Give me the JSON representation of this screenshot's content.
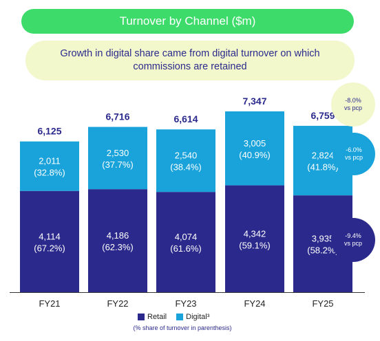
{
  "title": "Turnover by Channel ($m)",
  "subtitle": "Growth in digital share came from digital turnover on which commissions are retained",
  "colors": {
    "retail": "#2b2a8c",
    "digital": "#1aa3db",
    "title_bg": "#3ddc6a",
    "subtitle_bg": "#f2f7cc",
    "bubble_light": "#f2f7cc"
  },
  "bubbles": [
    {
      "line1": "-8.0%",
      "line2": "vs pcp",
      "style": "light"
    },
    {
      "line1": "-6.0%",
      "line2": "vs pcp",
      "style": "digital"
    },
    {
      "line1": "-9.4%",
      "line2": "vs pcp",
      "style": "retail"
    }
  ],
  "legend": {
    "retail": "Retail",
    "digital": "Digital³"
  },
  "note": "(% share of turnover in parenthesis)",
  "chart_data": {
    "type": "bar",
    "stacked": true,
    "categories": [
      "FY21",
      "FY22",
      "FY23",
      "FY24",
      "FY25"
    ],
    "totals": [
      "6,125",
      "6,716",
      "6,614",
      "7,347",
      "6,759"
    ],
    "series": [
      {
        "name": "Retail",
        "values": [
          4114,
          4186,
          4074,
          4342,
          3935
        ],
        "labels": [
          "4,114",
          "4,186",
          "4,074",
          "4,342",
          "3,935"
        ],
        "shares": [
          "(67.2%)",
          "(62.3%)",
          "(61.6%)",
          "(59.1%)",
          "(58.2%)"
        ]
      },
      {
        "name": "Digital³",
        "values": [
          2011,
          2530,
          2540,
          3005,
          2824
        ],
        "labels": [
          "2,011",
          "2,530",
          "2,540",
          "3,005",
          "2,824"
        ],
        "shares": [
          "(32.8%)",
          "(37.7%)",
          "(38.4%)",
          "(40.9%)",
          "(41.8%)"
        ]
      }
    ],
    "ylim": [
      0,
      7347
    ]
  }
}
